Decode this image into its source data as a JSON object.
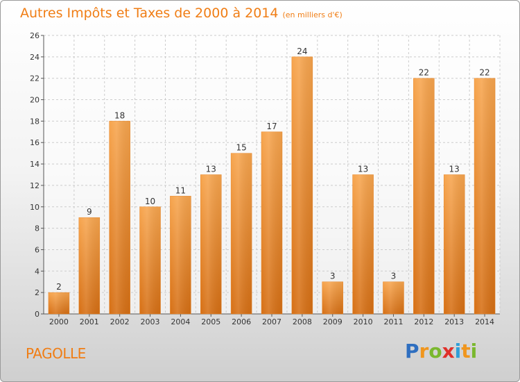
{
  "title": "Autres Impôts et Taxes de 2000 à 2014",
  "unit": "(en milliers d'€)",
  "commune": "PAGOLLE",
  "logo": {
    "letters": [
      "P",
      "r",
      "o",
      "x",
      "i",
      "t",
      "i"
    ],
    "colors": [
      "#2f6fc0",
      "#f0961e",
      "#7ab82e",
      "#e0302a",
      "#2f9fd8",
      "#f0961e",
      "#7ab82e"
    ]
  },
  "colors": {
    "bar": "#f0962e",
    "title": "#f07d14",
    "grid": "#cccccc"
  },
  "chart_data": {
    "type": "bar",
    "title": "Autres Impôts et Taxes de 2000 à 2014",
    "categories": [
      "2000",
      "2001",
      "2002",
      "2003",
      "2004",
      "2005",
      "2006",
      "2007",
      "2008",
      "2009",
      "2010",
      "2011",
      "2012",
      "2013",
      "2014"
    ],
    "values": [
      2,
      9,
      18,
      10,
      11,
      13,
      15,
      17,
      24,
      3,
      13,
      3,
      22,
      13,
      22
    ],
    "ylim": [
      0,
      26
    ],
    "yticks": [
      0,
      2,
      4,
      6,
      8,
      10,
      12,
      14,
      16,
      18,
      20,
      22,
      24,
      26
    ],
    "grid": true,
    "data_labels": true
  }
}
